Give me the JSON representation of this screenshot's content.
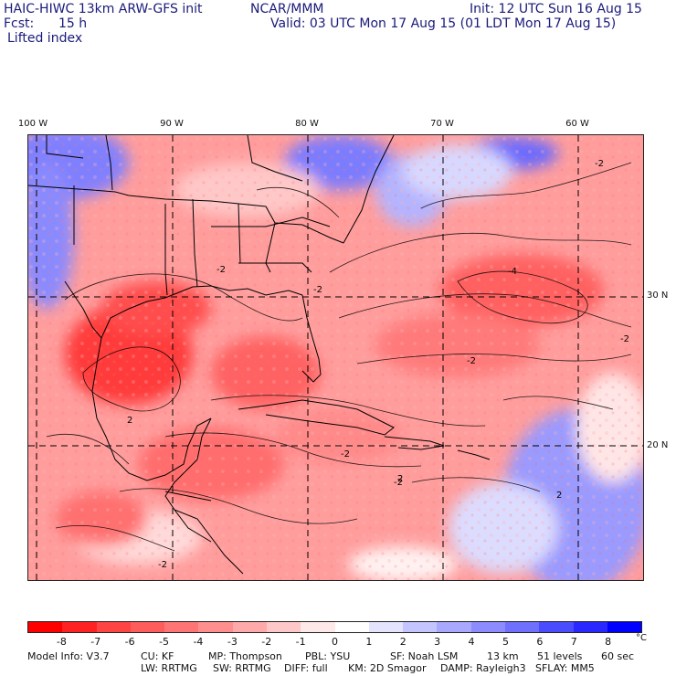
{
  "header": {
    "model": "HAIC-HIWC 13km ARW-GFS init",
    "org": "NCAR/MMM",
    "init": "Init: 12 UTC Sun 16 Aug 15",
    "fcst_label": "Fcst:",
    "fcst_value": "15 h",
    "valid": "Valid: 03 UTC Mon 17 Aug 15 (01 LDT Mon 17 Aug 15)",
    "field": "Lifted index"
  },
  "map": {
    "lon_labels": [
      "100 W",
      "90 W",
      "80 W",
      "70 W",
      "60 W"
    ],
    "lat_labels": [
      "30 N",
      "20 N"
    ],
    "contour_labels": [
      "-2",
      "-2",
      "-2",
      "-2",
      "-2",
      "-2",
      "-2",
      "-2",
      "-4",
      "2",
      "2",
      "2"
    ]
  },
  "colorbar": {
    "colors": [
      "#ff0000",
      "#ff2222",
      "#ff4444",
      "#ff5c5c",
      "#ff7575",
      "#ff8f8f",
      "#ffaaaa",
      "#ffc8c8",
      "#ffe8e8",
      "#ffffff",
      "#e4e4ff",
      "#c4c4ff",
      "#a8a8ff",
      "#8c8cff",
      "#7070ff",
      "#4c4cff",
      "#2828ff",
      "#0000ff"
    ],
    "ticks": [
      "-8",
      "-7",
      "-6",
      "-5",
      "-4",
      "-3",
      "-2",
      "-1",
      "0",
      "1",
      "2",
      "3",
      "4",
      "5",
      "6",
      "7",
      "8"
    ],
    "unit": "°C"
  },
  "footer": {
    "line1": [
      "Model Info: V3.7",
      "CU: KF",
      "MP: Thompson",
      "PBL: YSU",
      "SF: Noah LSM",
      "13 km",
      "51 levels",
      "60 sec"
    ],
    "line2": [
      "LW: RRTMG",
      "SW: RRTMG",
      "DIFF: full",
      "KM: 2D Smagor",
      "DAMP: Rayleigh3",
      "SFLAY: MM5"
    ]
  }
}
